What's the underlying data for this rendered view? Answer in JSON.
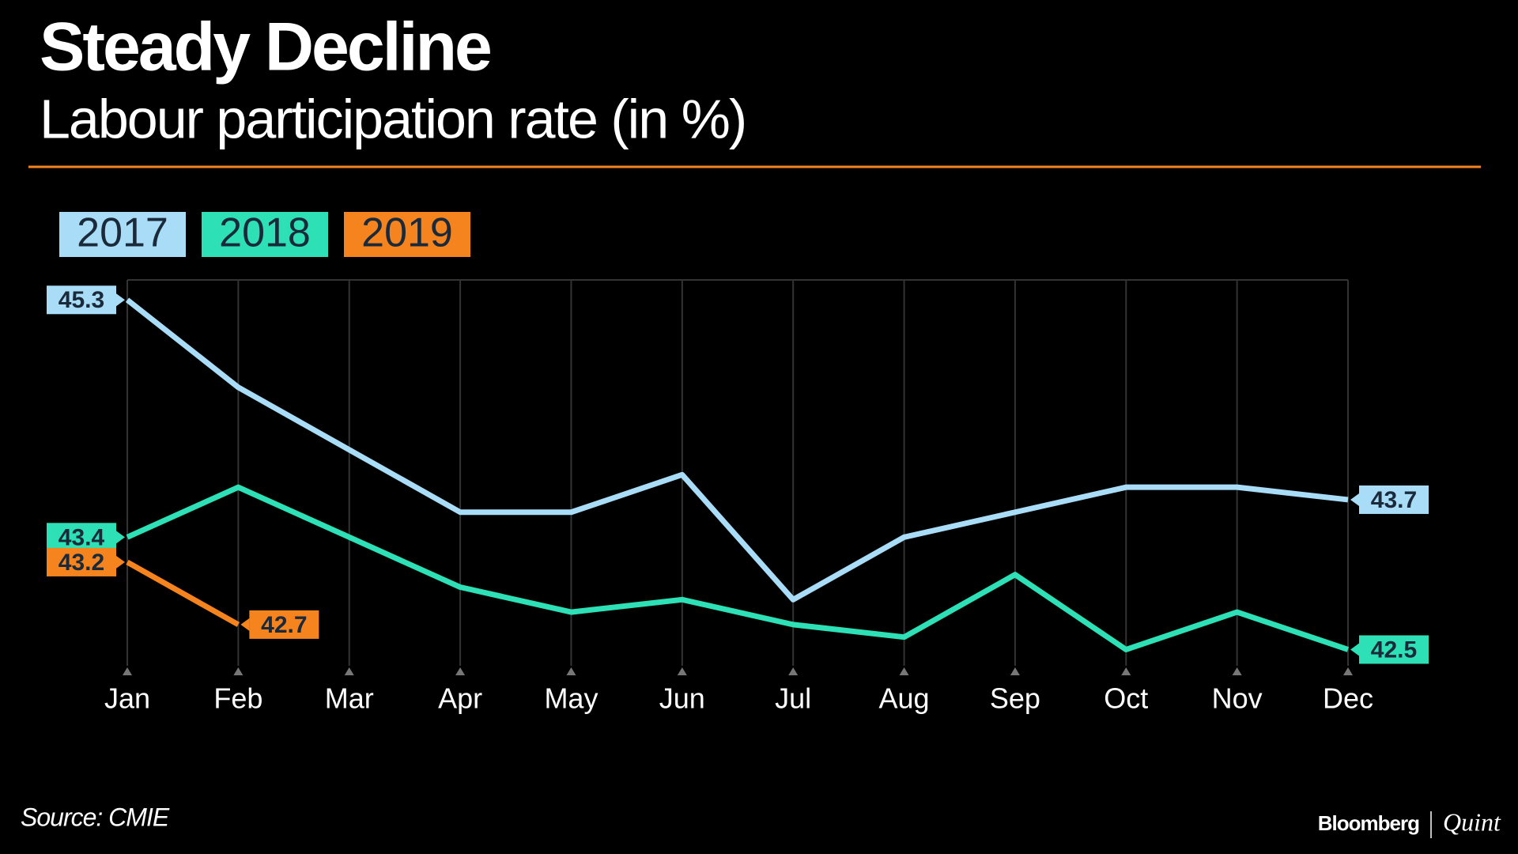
{
  "chart_data": {
    "type": "line",
    "title": "Steady Decline",
    "subtitle": "Labour participation rate (in %)",
    "categories": [
      "Jan",
      "Feb",
      "Mar",
      "Apr",
      "May",
      "Jun",
      "Jul",
      "Aug",
      "Sep",
      "Oct",
      "Nov",
      "Dec"
    ],
    "series": [
      {
        "name": "2017",
        "color": "#a8dcf7",
        "values": [
          45.3,
          44.6,
          44.1,
          43.6,
          43.6,
          43.9,
          42.9,
          43.4,
          43.6,
          43.8,
          43.8,
          43.7
        ]
      },
      {
        "name": "2018",
        "color": "#2de0b5",
        "values": [
          43.4,
          43.8,
          43.4,
          43.0,
          42.8,
          42.9,
          42.7,
          42.6,
          43.1,
          42.5,
          42.8,
          42.5
        ]
      },
      {
        "name": "2019",
        "color": "#f5841f",
        "values": [
          43.2,
          42.7,
          null,
          null,
          null,
          null,
          null,
          null,
          null,
          null,
          null,
          null
        ]
      }
    ],
    "ylim": [
      42.37,
      45.46
    ],
    "grid": true,
    "legend": "top-left",
    "source": "Source: CMIE",
    "brand": [
      "Bloomberg",
      "Quint"
    ]
  }
}
